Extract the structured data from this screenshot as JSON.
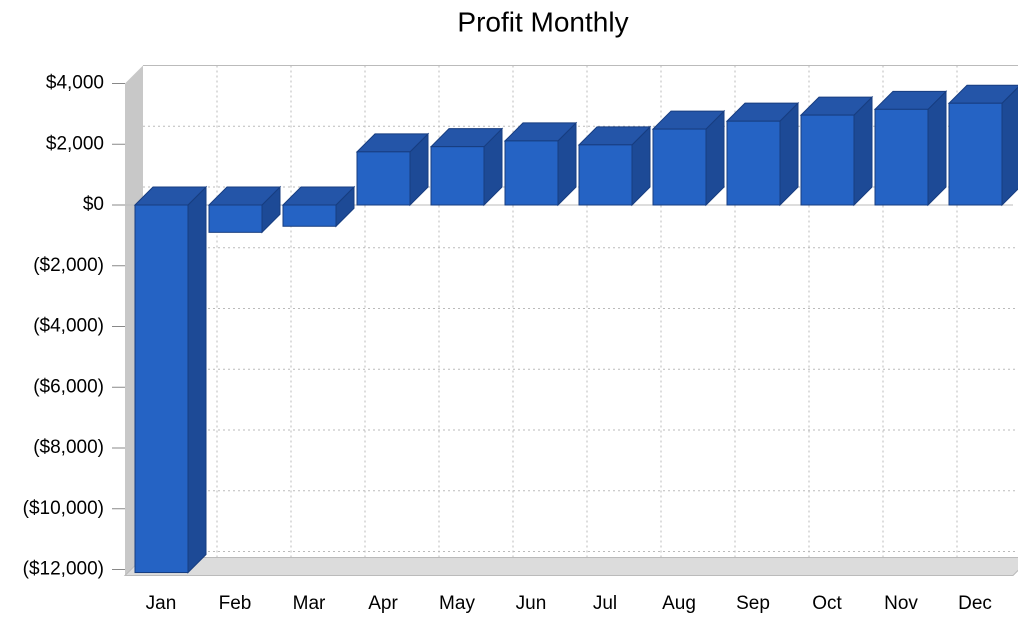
{
  "chart_data": {
    "type": "bar",
    "title": "Profit Monthly",
    "categories": [
      "Jan",
      "Feb",
      "Mar",
      "Apr",
      "May",
      "Jun",
      "Jul",
      "Aug",
      "Sep",
      "Oct",
      "Nov",
      "Dec"
    ],
    "values": [
      -12100,
      -900,
      -700,
      1750,
      1920,
      2110,
      1980,
      2500,
      2760,
      2960,
      3150,
      3350
    ],
    "color": "#2563c4",
    "ylim": [
      -12000,
      4000
    ],
    "yticks": [
      {
        "value": -12000,
        "label": "($12,000)"
      },
      {
        "value": -10000,
        "label": "($10,000)"
      },
      {
        "value": -8000,
        "label": "($8,000)"
      },
      {
        "value": -6000,
        "label": "($6,000)"
      },
      {
        "value": -4000,
        "label": "($4,000)"
      },
      {
        "value": -2000,
        "label": "($2,000)"
      },
      {
        "value": 0,
        "label": "$0"
      },
      {
        "value": 2000,
        "label": "$2,000"
      },
      {
        "value": 4000,
        "label": "$4,000"
      }
    ],
    "grid": true
  }
}
